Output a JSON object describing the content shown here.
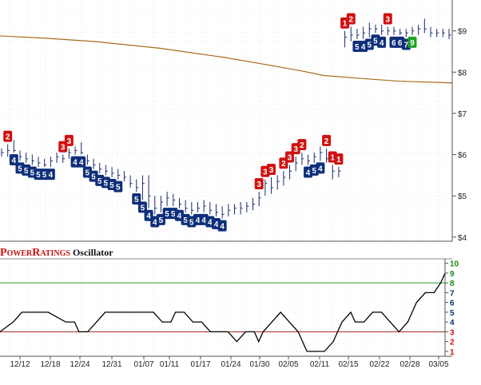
{
  "chart_data": [
    {
      "type": "line",
      "name": "price",
      "y_ticks": [
        "$9",
        "$8",
        "$7",
        "$6",
        "$5",
        "$4"
      ],
      "ylim": [
        3.9,
        9.75
      ],
      "ma_line": [
        [
          0,
          8.88
        ],
        [
          60,
          8.82
        ],
        [
          120,
          8.74
        ],
        [
          200,
          8.58
        ],
        [
          280,
          8.36
        ],
        [
          340,
          8.16
        ],
        [
          380,
          8.02
        ],
        [
          405,
          7.92
        ],
        [
          450,
          7.85
        ],
        [
          500,
          7.78
        ],
        [
          566,
          7.74
        ]
      ],
      "bars": [
        {
          "i": 0,
          "hi": 6.15,
          "lo": 5.95,
          "c": 6.05
        },
        {
          "i": 1,
          "hi": 6.25,
          "lo": 5.95,
          "c": 6.1
        },
        {
          "i": 2,
          "hi": 6.35,
          "lo": 6.05,
          "c": 6.1
        },
        {
          "i": 3,
          "hi": 6.1,
          "lo": 5.85,
          "c": 5.95
        },
        {
          "i": 4,
          "hi": 6.05,
          "lo": 5.8,
          "c": 5.9
        },
        {
          "i": 5,
          "hi": 6.0,
          "lo": 5.75,
          "c": 5.85
        },
        {
          "i": 6,
          "hi": 5.95,
          "lo": 5.7,
          "c": 5.8
        },
        {
          "i": 7,
          "hi": 5.9,
          "lo": 5.7,
          "c": 5.75
        },
        {
          "i": 8,
          "hi": 5.95,
          "lo": 5.7,
          "c": 5.85
        },
        {
          "i": 9,
          "hi": 6.05,
          "lo": 5.8,
          "c": 5.95
        },
        {
          "i": 10,
          "hi": 6.0,
          "lo": 5.8,
          "c": 5.9
        },
        {
          "i": 11,
          "hi": 6.15,
          "lo": 5.9,
          "c": 6.05
        },
        {
          "i": 12,
          "hi": 6.2,
          "lo": 6.0,
          "c": 6.1
        },
        {
          "i": 13,
          "hi": 6.3,
          "lo": 6.0,
          "c": 6.05
        },
        {
          "i": 14,
          "hi": 6.0,
          "lo": 5.75,
          "c": 5.85
        },
        {
          "i": 15,
          "hi": 5.9,
          "lo": 5.65,
          "c": 5.75
        },
        {
          "i": 16,
          "hi": 5.8,
          "lo": 5.55,
          "c": 5.65
        },
        {
          "i": 17,
          "hi": 5.75,
          "lo": 5.5,
          "c": 5.6
        },
        {
          "i": 18,
          "hi": 5.7,
          "lo": 5.45,
          "c": 5.55
        },
        {
          "i": 19,
          "hi": 5.65,
          "lo": 5.4,
          "c": 5.5
        },
        {
          "i": 20,
          "hi": 5.6,
          "lo": 5.35,
          "c": 5.45
        },
        {
          "i": 21,
          "hi": 5.5,
          "lo": 5.2,
          "c": 5.3
        },
        {
          "i": 22,
          "hi": 5.4,
          "lo": 5.1,
          "c": 5.2
        },
        {
          "i": 23,
          "hi": 5.5,
          "lo": 4.9,
          "c": 5.3
        },
        {
          "i": 24,
          "hi": 5.5,
          "lo": 4.7,
          "c": 5.0
        },
        {
          "i": 25,
          "hi": 5.0,
          "lo": 4.55,
          "c": 4.7
        },
        {
          "i": 26,
          "hi": 5.0,
          "lo": 4.6,
          "c": 4.85
        },
        {
          "i": 27,
          "hi": 5.1,
          "lo": 4.75,
          "c": 4.95
        },
        {
          "i": 28,
          "hi": 5.05,
          "lo": 4.75,
          "c": 4.9
        },
        {
          "i": 29,
          "hi": 4.95,
          "lo": 4.7,
          "c": 4.8
        },
        {
          "i": 30,
          "hi": 4.9,
          "lo": 4.6,
          "c": 4.7
        },
        {
          "i": 31,
          "hi": 4.85,
          "lo": 4.55,
          "c": 4.65
        },
        {
          "i": 32,
          "hi": 4.85,
          "lo": 4.6,
          "c": 4.7
        },
        {
          "i": 33,
          "hi": 4.9,
          "lo": 4.6,
          "c": 4.75
        },
        {
          "i": 34,
          "hi": 4.85,
          "lo": 4.55,
          "c": 4.65
        },
        {
          "i": 35,
          "hi": 4.8,
          "lo": 4.5,
          "c": 4.6
        },
        {
          "i": 36,
          "hi": 4.75,
          "lo": 4.45,
          "c": 4.55
        },
        {
          "i": 37,
          "hi": 4.8,
          "lo": 4.5,
          "c": 4.65
        },
        {
          "i": 38,
          "hi": 4.8,
          "lo": 4.55,
          "c": 4.7
        },
        {
          "i": 39,
          "hi": 4.85,
          "lo": 4.55,
          "c": 4.7
        },
        {
          "i": 40,
          "hi": 4.85,
          "lo": 4.6,
          "c": 4.75
        },
        {
          "i": 41,
          "hi": 4.95,
          "lo": 4.65,
          "c": 4.8
        },
        {
          "i": 42,
          "hi": 5.1,
          "lo": 4.75,
          "c": 4.95
        },
        {
          "i": 43,
          "hi": 5.4,
          "lo": 5.0,
          "c": 5.3
        },
        {
          "i": 44,
          "hi": 5.45,
          "lo": 5.05,
          "c": 5.2
        },
        {
          "i": 45,
          "hi": 5.5,
          "lo": 5.15,
          "c": 5.35
        },
        {
          "i": 46,
          "hi": 5.6,
          "lo": 5.25,
          "c": 5.45
        },
        {
          "i": 47,
          "hi": 5.75,
          "lo": 5.4,
          "c": 5.6
        },
        {
          "i": 48,
          "hi": 5.95,
          "lo": 5.6,
          "c": 5.8
        },
        {
          "i": 49,
          "hi": 6.05,
          "lo": 5.75,
          "c": 5.9
        },
        {
          "i": 50,
          "hi": 6.0,
          "lo": 5.75,
          "c": 5.85
        },
        {
          "i": 51,
          "hi": 6.05,
          "lo": 5.8,
          "c": 5.95
        },
        {
          "i": 52,
          "hi": 6.2,
          "lo": 5.85,
          "c": 6.05
        },
        {
          "i": 53,
          "hi": 6.15,
          "lo": 5.8,
          "c": 5.9
        },
        {
          "i": 54,
          "hi": 5.75,
          "lo": 5.4,
          "c": 5.6
        },
        {
          "i": 55,
          "hi": 5.7,
          "lo": 5.45,
          "c": 5.6
        },
        {
          "i": 56,
          "hi": 9.0,
          "lo": 8.6,
          "c": 8.85
        },
        {
          "i": 57,
          "hi": 9.1,
          "lo": 8.75,
          "c": 8.9
        },
        {
          "i": 58,
          "hi": 9.05,
          "lo": 8.8,
          "c": 8.9
        },
        {
          "i": 59,
          "hi": 9.1,
          "lo": 8.8,
          "c": 8.95
        },
        {
          "i": 60,
          "hi": 9.2,
          "lo": 8.85,
          "c": 9.05
        },
        {
          "i": 61,
          "hi": 9.15,
          "lo": 8.95,
          "c": 9.05
        },
        {
          "i": 62,
          "hi": 9.15,
          "lo": 8.9,
          "c": 9.0
        },
        {
          "i": 63,
          "hi": 9.1,
          "lo": 8.9,
          "c": 9.0
        },
        {
          "i": 64,
          "hi": 9.1,
          "lo": 8.9,
          "c": 9.0
        },
        {
          "i": 65,
          "hi": 9.05,
          "lo": 8.9,
          "c": 8.95
        },
        {
          "i": 66,
          "hi": 9.05,
          "lo": 8.85,
          "c": 8.95
        },
        {
          "i": 67,
          "hi": 9.1,
          "lo": 8.9,
          "c": 9.0
        },
        {
          "i": 68,
          "hi": 9.15,
          "lo": 8.9,
          "c": 9.05
        },
        {
          "i": 69,
          "hi": 9.3,
          "lo": 8.95,
          "c": 9.05
        },
        {
          "i": 70,
          "hi": 9.1,
          "lo": 8.85,
          "c": 8.95
        },
        {
          "i": 71,
          "hi": 9.05,
          "lo": 8.85,
          "c": 8.95
        },
        {
          "i": 72,
          "hi": 9.05,
          "lo": 8.85,
          "c": 8.95
        },
        {
          "i": 73,
          "hi": 9.05,
          "lo": 8.8,
          "c": 8.9
        }
      ],
      "bar_count": 74,
      "badges": [
        {
          "b": 1,
          "v": "2",
          "row": "top",
          "color": "red"
        },
        {
          "b": 2,
          "v": "4",
          "row": "bot",
          "color": "blue"
        },
        {
          "b": 3,
          "v": "5",
          "row": "bot",
          "color": "blue"
        },
        {
          "b": 4,
          "v": "5",
          "row": "bot",
          "color": "blue"
        },
        {
          "b": 5,
          "v": "5",
          "row": "bot",
          "color": "blue"
        },
        {
          "b": 6,
          "v": "5",
          "row": "bot",
          "color": "blue"
        },
        {
          "b": 7,
          "v": "5",
          "row": "bot",
          "color": "blue"
        },
        {
          "b": 8,
          "v": "4",
          "row": "bot",
          "color": "blue"
        },
        {
          "b": 10,
          "v": "3",
          "row": "top",
          "color": "red"
        },
        {
          "b": 11,
          "v": "3",
          "row": "top",
          "color": "red"
        },
        {
          "b": 12,
          "v": "4",
          "row": "bot",
          "color": "blue"
        },
        {
          "b": 13,
          "v": "4",
          "row": "bot",
          "color": "blue"
        },
        {
          "b": 14,
          "v": "5",
          "row": "bot",
          "color": "blue"
        },
        {
          "b": 15,
          "v": "5",
          "row": "bot",
          "color": "blue"
        },
        {
          "b": 16,
          "v": "5",
          "row": "bot",
          "color": "blue"
        },
        {
          "b": 17,
          "v": "5",
          "row": "bot",
          "color": "blue"
        },
        {
          "b": 18,
          "v": "5",
          "row": "bot",
          "color": "blue"
        },
        {
          "b": 19,
          "v": "5",
          "row": "bot",
          "color": "blue"
        },
        {
          "b": 22,
          "v": "5",
          "row": "bot",
          "color": "blue"
        },
        {
          "b": 23,
          "v": "5",
          "row": "bot",
          "color": "blue"
        },
        {
          "b": 24,
          "v": "4",
          "row": "bot",
          "color": "blue"
        },
        {
          "b": 25,
          "v": "4",
          "row": "bot",
          "color": "blue"
        },
        {
          "b": 26,
          "v": "5",
          "row": "bot",
          "color": "blue"
        },
        {
          "b": 27,
          "v": "5",
          "row": "bot",
          "color": "blue"
        },
        {
          "b": 28,
          "v": "5",
          "row": "bot",
          "color": "blue"
        },
        {
          "b": 29,
          "v": "4",
          "row": "bot",
          "color": "blue"
        },
        {
          "b": 30,
          "v": "5",
          "row": "bot",
          "color": "blue"
        },
        {
          "b": 31,
          "v": "5",
          "row": "bot",
          "color": "blue"
        },
        {
          "b": 32,
          "v": "4",
          "row": "bot",
          "color": "blue"
        },
        {
          "b": 33,
          "v": "4",
          "row": "bot",
          "color": "blue"
        },
        {
          "b": 34,
          "v": "4",
          "row": "bot",
          "color": "blue"
        },
        {
          "b": 35,
          "v": "4",
          "row": "bot",
          "color": "blue"
        },
        {
          "b": 36,
          "v": "4",
          "row": "bot",
          "color": "blue"
        },
        {
          "b": 42,
          "v": "3",
          "row": "top",
          "color": "red"
        },
        {
          "b": 43,
          "v": "3",
          "row": "top",
          "color": "red"
        },
        {
          "b": 44,
          "v": "3",
          "row": "top",
          "color": "red"
        },
        {
          "b": 46,
          "v": "2",
          "row": "top",
          "color": "red"
        },
        {
          "b": 47,
          "v": "3",
          "row": "top",
          "color": "red"
        },
        {
          "b": 48,
          "v": "3",
          "row": "top",
          "color": "red"
        },
        {
          "b": 49,
          "v": "2",
          "row": "top",
          "color": "red"
        },
        {
          "b": 50,
          "v": "4",
          "row": "bot",
          "color": "blue"
        },
        {
          "b": 51,
          "v": "5",
          "row": "bot",
          "color": "blue"
        },
        {
          "b": 52,
          "v": "4",
          "row": "bot",
          "color": "blue"
        },
        {
          "b": 53,
          "v": "2",
          "row": "top",
          "color": "red"
        },
        {
          "b": 54,
          "v": "1",
          "row": "top",
          "color": "red"
        },
        {
          "b": 55,
          "v": "1",
          "row": "top",
          "color": "red"
        },
        {
          "b": 56,
          "v": "1",
          "row": "top",
          "color": "red"
        },
        {
          "b": 57,
          "v": "2",
          "row": "top",
          "color": "red"
        },
        {
          "b": 58,
          "v": "5",
          "row": "bot",
          "color": "blue"
        },
        {
          "b": 59,
          "v": "4",
          "row": "bot",
          "color": "blue"
        },
        {
          "b": 60,
          "v": "5",
          "row": "bot",
          "color": "blue"
        },
        {
          "b": 61,
          "v": "5",
          "row": "bot",
          "color": "blue"
        },
        {
          "b": 62,
          "v": "4",
          "row": "bot",
          "color": "blue"
        },
        {
          "b": 63,
          "v": "3",
          "row": "top",
          "color": "red"
        },
        {
          "b": 64,
          "v": "6",
          "row": "bot",
          "color": "blue"
        },
        {
          "b": 65,
          "v": "6",
          "row": "bot",
          "color": "blue"
        },
        {
          "b": 66,
          "v": "7",
          "row": "bot",
          "color": "blue"
        },
        {
          "b": 67,
          "v": "9",
          "row": "bot",
          "color": "green"
        }
      ]
    },
    {
      "type": "line",
      "name": "PowerRatings Oscillator",
      "y_ticks": [
        "10",
        "9",
        "8",
        "7",
        "6",
        "5",
        "4",
        "3",
        "2",
        "1"
      ],
      "ylim": [
        0.5,
        10.3
      ],
      "green_line": 8,
      "red_line": 3,
      "x_labels": [
        "12/12",
        "12/18",
        "12/24",
        "12/31",
        "01/07",
        "01/11",
        "01/17",
        "01/24",
        "01/30",
        "02/05",
        "02/11",
        "02/15",
        "02/22",
        "02/28",
        "03/05"
      ],
      "series": [
        [
          0,
          3
        ],
        [
          6,
          4
        ],
        [
          10,
          5
        ],
        [
          16,
          5
        ],
        [
          22,
          5
        ],
        [
          30,
          4
        ],
        [
          34,
          4
        ],
        [
          36,
          3
        ],
        [
          40,
          3
        ],
        [
          44,
          4
        ],
        [
          48,
          5
        ],
        [
          52,
          5
        ],
        [
          58,
          5
        ],
        [
          64,
          5
        ],
        [
          70,
          5
        ],
        [
          74,
          4
        ],
        [
          78,
          4
        ],
        [
          80,
          5
        ],
        [
          84,
          5
        ],
        [
          88,
          4
        ],
        [
          92,
          4
        ],
        [
          96,
          3
        ],
        [
          100,
          3
        ],
        [
          104,
          3
        ],
        [
          108,
          2
        ],
        [
          112,
          3
        ],
        [
          116,
          3
        ],
        [
          118,
          2
        ],
        [
          120,
          3
        ],
        [
          124,
          4
        ],
        [
          128,
          5
        ],
        [
          132,
          4
        ],
        [
          136,
          3
        ],
        [
          138,
          2
        ],
        [
          140,
          1
        ],
        [
          144,
          1
        ],
        [
          148,
          1
        ],
        [
          152,
          2
        ],
        [
          156,
          4
        ],
        [
          160,
          5
        ],
        [
          162,
          4
        ],
        [
          166,
          4
        ],
        [
          170,
          5
        ],
        [
          174,
          5
        ],
        [
          178,
          4
        ],
        [
          182,
          3
        ],
        [
          186,
          4
        ],
        [
          190,
          6
        ],
        [
          194,
          7
        ],
        [
          198,
          7
        ],
        [
          201,
          8
        ],
        [
          203,
          9
        ]
      ]
    }
  ],
  "oscillator": {
    "title_power": "POWER",
    "title_ratings": "RATINGS",
    "title_rest": " Oscillator"
  }
}
